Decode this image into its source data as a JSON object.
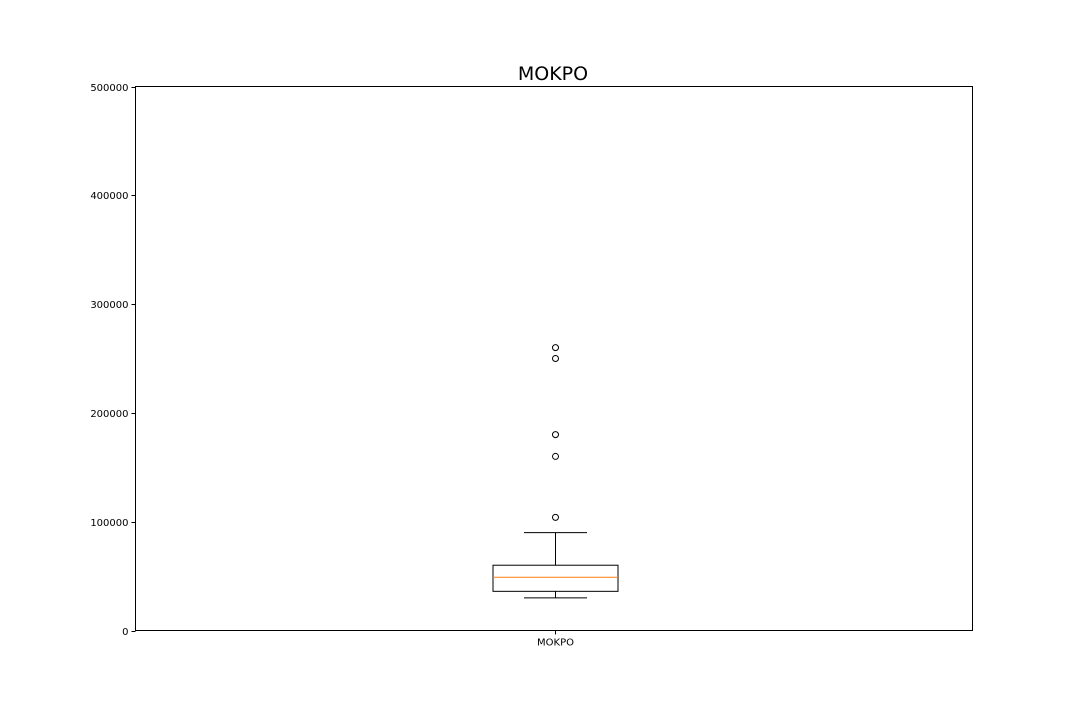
{
  "chart_data": {
    "type": "box",
    "title": "MOKPO",
    "xlabel": "",
    "ylabel": "",
    "categories": [
      "MOKPO"
    ],
    "ylim": [
      0,
      500000
    ],
    "y_ticks": [
      0,
      100000,
      200000,
      300000,
      400000,
      500000
    ],
    "y_tick_labels": [
      "0",
      "100000",
      "200000",
      "300000",
      "400000",
      "500000"
    ],
    "boxes": [
      {
        "category": "MOKPO",
        "whisker_low": 30000,
        "q1": 36000,
        "median": 49000,
        "q3": 60000,
        "whisker_high": 90000,
        "outliers": [
          104000,
          160000,
          180000,
          250000,
          260000
        ]
      }
    ],
    "grid": false,
    "legend": "none",
    "colors": {
      "box": "#000000",
      "median": "#ff7f0e",
      "frame": "#000000"
    }
  }
}
